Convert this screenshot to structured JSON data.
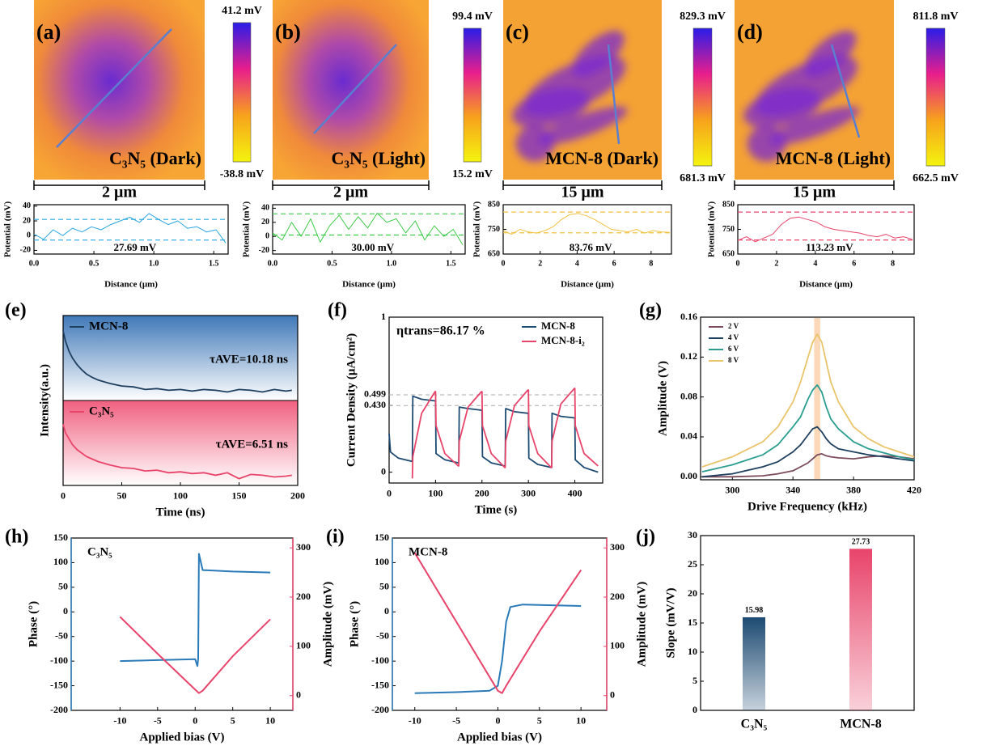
{
  "chart_data": [
    {
      "type": "kpfm",
      "panel": "(a)",
      "label": "C₃N₅ (Dark)",
      "scale_bar": "2 μm",
      "colormap": [
        "#f4f40e",
        "#f7a21c",
        "#e81e8c",
        "#2a1de8"
      ],
      "clim": [
        -38.8,
        41.2
      ],
      "cticks": [
        {
          "value": 41.2,
          "label": "41.2 mV"
        },
        {
          "value": -38.8,
          "label": "-38.8 mV"
        }
      ],
      "profile": {
        "xlabel": "Distance (μm)",
        "ylabel": "Potential (mV)",
        "xlim": [
          0,
          1.62
        ],
        "xticks": [
          {
            "value": 0,
            "label": "0.0"
          },
          0.5,
          {
            "value": 1,
            "label": "1.0"
          },
          1.5
        ],
        "ylim": [
          -25,
          42
        ],
        "yticks": [
          -20,
          0,
          20,
          40
        ],
        "ref_lines": [
          22,
          -6
        ],
        "annotation": "27.69 mV",
        "x": [
          0,
          0.08,
          0.16,
          0.24,
          0.32,
          0.4,
          0.48,
          0.56,
          0.64,
          0.72,
          0.8,
          0.88,
          0.96,
          1.04,
          1.12,
          1.2,
          1.28,
          1.36,
          1.44,
          1.52,
          1.6
        ],
        "series": [
          {
            "color": "#29a8e0",
            "values": [
              2,
              -5,
              8,
              0,
              10,
              5,
              12,
              8,
              15,
              20,
              25,
              18,
              30,
              22,
              15,
              20,
              10,
              12,
              5,
              8,
              -10
            ]
          }
        ]
      }
    },
    {
      "type": "kpfm",
      "panel": "(b)",
      "label": "C₃N₅ (Light)",
      "scale_bar": "2 μm",
      "colormap": [
        "#f4f40e",
        "#f7a21c",
        "#e81e8c",
        "#2a1de8"
      ],
      "clim": [
        15.2,
        99.4
      ],
      "cticks": [
        {
          "value": 99.4,
          "label": "99.4 mV"
        },
        {
          "value": 15.2,
          "label": "15.2 mV"
        }
      ],
      "profile": {
        "xlabel": "Distance (μm)",
        "ylabel": "Potential (mV)",
        "xlim": [
          0,
          1.62
        ],
        "xticks": [
          {
            "value": 0,
            "label": "0.0"
          },
          0.5,
          {
            "value": 1,
            "label": "1.0"
          },
          1.5
        ],
        "ylim": [
          -25,
          45
        ],
        "yticks": [
          -20,
          0,
          20,
          40
        ],
        "ref_lines": [
          32,
          2
        ],
        "annotation": "30.00 mV",
        "x": [
          0,
          0.08,
          0.16,
          0.24,
          0.32,
          0.4,
          0.48,
          0.56,
          0.64,
          0.72,
          0.8,
          0.88,
          0.96,
          1.04,
          1.12,
          1.2,
          1.28,
          1.36,
          1.44,
          1.52,
          1.6
        ],
        "series": [
          {
            "color": "#3ec94a",
            "values": [
              5,
              -5,
              20,
              0,
              25,
              -8,
              15,
              30,
              10,
              28,
              12,
              33,
              20,
              25,
              5,
              22,
              -5,
              15,
              0,
              10,
              -12
            ]
          }
        ]
      }
    },
    {
      "type": "kpfm",
      "panel": "(c)",
      "label": "MCN-8 (Dark)",
      "scale_bar": "15 μm",
      "colormap": [
        "#f4f40e",
        "#f7a21c",
        "#e81e8c",
        "#2a1de8"
      ],
      "clim": [
        681.3,
        829.3
      ],
      "cticks": [
        {
          "value": 829.3,
          "label": "829.3 mV"
        },
        {
          "value": 681.3,
          "label": "681.3 mV"
        }
      ],
      "profile": {
        "xlabel": "Distance (μm)",
        "ylabel": "Potential (mV)",
        "xlim": [
          0,
          9.1
        ],
        "xticks": [
          0,
          2,
          4,
          6,
          8
        ],
        "ylim": [
          650,
          850
        ],
        "yticks": [
          650,
          750,
          850
        ],
        "ref_lines": [
          820,
          736
        ],
        "annotation": "83.76 mV",
        "x": [
          0,
          0.45,
          0.9,
          1.35,
          1.8,
          2.25,
          2.7,
          3.15,
          3.6,
          4.05,
          4.5,
          4.95,
          5.4,
          5.85,
          6.3,
          6.75,
          7.2,
          7.65,
          8.1,
          8.55,
          9
        ],
        "series": [
          {
            "color": "#f0c040",
            "values": [
              745,
              730,
              750,
              740,
              735,
              745,
              760,
              790,
              810,
              815,
              805,
              790,
              770,
              750,
              745,
              740,
              750,
              735,
              745,
              740,
              738
            ]
          }
        ]
      }
    },
    {
      "type": "kpfm",
      "panel": "(d)",
      "label": "MCN-8 (Light)",
      "scale_bar": "15 μm",
      "colormap": [
        "#f4f40e",
        "#f7a21c",
        "#e81e8c",
        "#2a1de8"
      ],
      "clim": [
        662.5,
        811.8
      ],
      "cticks": [
        {
          "value": 811.8,
          "label": "811.8 mV"
        },
        {
          "value": 662.5,
          "label": "662.5 mV"
        }
      ],
      "profile": {
        "xlabel": "Distance (μm)",
        "ylabel": "Potential (mV)",
        "xlim": [
          0,
          9.1
        ],
        "xticks": [
          0,
          2,
          4,
          6,
          8
        ],
        "ylim": [
          650,
          850
        ],
        "yticks": [
          650,
          750,
          850
        ],
        "ref_lines": [
          820,
          707
        ],
        "annotation": "113.23 mV",
        "x": [
          0,
          0.45,
          0.9,
          1.35,
          1.8,
          2.25,
          2.7,
          3.15,
          3.6,
          4.05,
          4.5,
          4.95,
          5.4,
          5.85,
          6.3,
          6.75,
          7.2,
          7.65,
          8.1,
          8.55,
          9
        ],
        "series": [
          {
            "color": "#e8446a",
            "values": [
              705,
              720,
              700,
              715,
              730,
              770,
              795,
              800,
              790,
              780,
              760,
              750,
              745,
              740,
              735,
              725,
              720,
              730,
              715,
              720,
              710
            ]
          }
        ]
      }
    },
    {
      "type": "decay",
      "panel": "(e)",
      "xlabel": "Time (ns)",
      "ylabel": "Intensity(a.u.)",
      "xlim": [
        0,
        200
      ],
      "xticks": [
        0,
        50,
        100,
        150,
        200
      ],
      "ylim": [
        0,
        1
      ],
      "annotations": [
        "τAVE=10.18 ns",
        "τAVE=6.51 ns"
      ],
      "x": [
        0,
        2,
        5,
        8,
        12,
        16,
        20,
        25,
        30,
        40,
        50,
        60,
        70,
        80,
        90,
        100,
        110,
        120,
        130,
        140,
        150,
        160,
        170,
        180,
        190,
        195
      ],
      "series": [
        {
          "name": "MCN-8",
          "color": "#1f3f5f",
          "values": [
            0.82,
            0.7,
            0.58,
            0.5,
            0.42,
            0.36,
            0.31,
            0.27,
            0.24,
            0.2,
            0.17,
            0.16,
            0.13,
            0.14,
            0.12,
            0.13,
            0.11,
            0.13,
            0.12,
            0.1,
            0.13,
            0.12,
            0.1,
            0.13,
            0.11,
            0.12
          ]
        },
        {
          "name": "C₃N₅",
          "color": "#e8446a",
          "values": [
            0.72,
            0.62,
            0.55,
            0.48,
            0.42,
            0.38,
            0.34,
            0.31,
            0.28,
            0.24,
            0.21,
            0.2,
            0.17,
            0.18,
            0.15,
            0.16,
            0.14,
            0.15,
            0.12,
            0.15,
            0.08,
            0.13,
            0.12,
            0.1,
            0.11,
            0.12
          ]
        }
      ]
    },
    {
      "type": "line",
      "panel": "(f)",
      "xlabel": "Time (s)",
      "ylabel": "Current Density (μA/cm²)",
      "xlim": [
        0,
        460
      ],
      "xticks": [
        0,
        100,
        200,
        300,
        400
      ],
      "ylim": [
        -0.07,
        1
      ],
      "yticks": [
        0,
        {
          "value": 0.43,
          "label": "0.430"
        },
        0.499,
        1
      ],
      "ref_lines": [
        0.499,
        0.43
      ],
      "annotation": "ηtrans=86.17 %",
      "legend": "upper right",
      "x": [
        0,
        3,
        20,
        49,
        50,
        51,
        70,
        99,
        100,
        101,
        120,
        149,
        150,
        151,
        170,
        199,
        200,
        201,
        220,
        249,
        250,
        251,
        270,
        299,
        300,
        301,
        320,
        349,
        350,
        351,
        370,
        399,
        400,
        401,
        420,
        450
      ],
      "series": [
        {
          "name": "MCN-8",
          "color": "#1d4a72",
          "values": [
            0.25,
            0.13,
            0.09,
            0.07,
            0.07,
            0.49,
            0.47,
            0.46,
            0.46,
            0.12,
            0.08,
            0.06,
            0.06,
            0.42,
            0.41,
            0.4,
            0.4,
            0.1,
            0.06,
            0.04,
            0.04,
            0.41,
            0.39,
            0.38,
            0.38,
            0.09,
            0.05,
            0.03,
            0.03,
            0.38,
            0.36,
            0.35,
            0.35,
            0.08,
            0.03,
            0
          ]
        },
        {
          "name": "MCN-8-i₂",
          "color": "#e8446a",
          "values": [
            null,
            null,
            null,
            null,
            -0.04,
            0.1,
            0.38,
            0.52,
            0.52,
            0.3,
            0.12,
            0.04,
            0.04,
            0.2,
            0.42,
            0.52,
            0.52,
            0.3,
            0.12,
            0.03,
            0.03,
            0.2,
            0.43,
            0.53,
            0.53,
            0.3,
            0.12,
            0.03,
            0.03,
            0.2,
            0.44,
            0.54,
            0.54,
            0.3,
            0.12,
            0.04
          ]
        }
      ]
    },
    {
      "type": "line",
      "panel": "(g)",
      "xlabel": "Drive Frequency (kHz)",
      "ylabel": "Amplitude (V)",
      "xlim": [
        279,
        420
      ],
      "xticks": [
        300,
        340,
        380,
        420
      ],
      "ylim": [
        -0.003,
        0.16
      ],
      "yticks": [
        {
          "value": 0,
          "label": "0.00"
        },
        0.04,
        0.08,
        0.12,
        0.16
      ],
      "highlight": [
        354,
        358
      ],
      "legend": "upper left",
      "x": [
        280,
        300,
        320,
        330,
        340,
        345,
        350,
        353,
        356,
        359,
        362,
        365,
        370,
        380,
        390,
        400,
        410,
        420
      ],
      "series": [
        {
          "name": "2 V",
          "color": "#7b4a5a",
          "values": [
            0,
            0,
            0.001,
            0.003,
            0.006,
            0.01,
            0.014,
            0.018,
            0.022,
            0.023,
            0.021,
            0.02,
            0.019,
            0.018,
            0.02,
            0.021,
            0.02,
            0.018
          ]
        },
        {
          "name": "4 V",
          "color": "#1f3f5f",
          "values": [
            0,
            0.003,
            0.01,
            0.015,
            0.025,
            0.032,
            0.042,
            0.048,
            0.05,
            0.045,
            0.038,
            0.033,
            0.028,
            0.025,
            0.022,
            0.02,
            0.018,
            0.016
          ]
        },
        {
          "name": "6 V",
          "color": "#2a9d8f",
          "values": [
            0.005,
            0.012,
            0.022,
            0.032,
            0.05,
            0.06,
            0.078,
            0.087,
            0.092,
            0.085,
            0.07,
            0.058,
            0.048,
            0.035,
            0.028,
            0.024,
            0.02,
            0.017
          ]
        },
        {
          "name": "8 V",
          "color": "#e9c46a",
          "values": [
            0.01,
            0.02,
            0.035,
            0.05,
            0.075,
            0.095,
            0.12,
            0.135,
            0.143,
            0.135,
            0.115,
            0.095,
            0.075,
            0.05,
            0.038,
            0.03,
            0.025,
            0.02
          ]
        }
      ]
    },
    {
      "type": "dual",
      "panel": "(h)",
      "label": "C₃N₅",
      "xlabel": "Applied bias (V)",
      "ylabel": "Phase (°)",
      "y2label": "Amplitude (mV)",
      "xlim": [
        -16.5,
        13
      ],
      "xticks": [
        -10,
        -5,
        0,
        5,
        10
      ],
      "ylim": [
        -200,
        150
      ],
      "yticks": [
        -200,
        -150,
        -100,
        -50,
        0,
        50,
        100,
        150
      ],
      "y2lim": [
        -30,
        320
      ],
      "y2ticks": [
        0,
        100,
        200,
        300
      ],
      "series": [
        {
          "color": "#2a7ab8",
          "x": [
            -10,
            -5,
            0,
            0.3,
            0.4,
            0.5,
            1,
            5,
            10
          ],
          "values": [
            -100,
            -98,
            -96,
            -110,
            -95,
            118,
            85,
            82,
            80
          ]
        },
        {
          "color": "#e8446a",
          "axis": "y2",
          "x": [
            -10,
            -5,
            0,
            0.5,
            1,
            5,
            10
          ],
          "values": [
            160,
            85,
            12,
            5,
            10,
            80,
            155
          ]
        }
      ]
    },
    {
      "type": "dual",
      "panel": "(i)",
      "label": "MCN-8",
      "xlabel": "Applied bias (V)",
      "ylabel": "Phase (°)",
      "y2label": "Amplitude (mV)",
      "xlim": [
        -12.7,
        13.1
      ],
      "xticks": [
        -10,
        -5,
        0,
        5,
        10
      ],
      "ylim": [
        -200,
        150
      ],
      "yticks": [
        -200,
        -150,
        -100,
        -50,
        0,
        50,
        100,
        150
      ],
      "y2lim": [
        -30,
        320
      ],
      "y2ticks": [
        0,
        100,
        200,
        300
      ],
      "series": [
        {
          "color": "#2a7ab8",
          "x": [
            -10,
            -5,
            -1,
            0,
            0.5,
            1,
            1.5,
            3,
            10
          ],
          "values": [
            -165,
            -163,
            -160,
            -150,
            -100,
            -20,
            10,
            15,
            12
          ]
        },
        {
          "color": "#e8446a",
          "axis": "y2",
          "x": [
            -10,
            -5,
            0,
            0.5,
            1,
            5,
            10
          ],
          "values": [
            290,
            150,
            10,
            5,
            20,
            130,
            255
          ]
        }
      ]
    },
    {
      "type": "bar",
      "panel": "(j)",
      "ylabel": "Slope (mV/V)",
      "categories": [
        "C₃N₅",
        "MCN-8"
      ],
      "values": [
        15.98,
        27.73
      ],
      "colors": [
        "#1d4a72",
        "#e8446a"
      ],
      "ylim": [
        0,
        30
      ],
      "yticks": [
        0,
        5,
        10,
        15,
        20,
        25,
        30
      ]
    }
  ]
}
